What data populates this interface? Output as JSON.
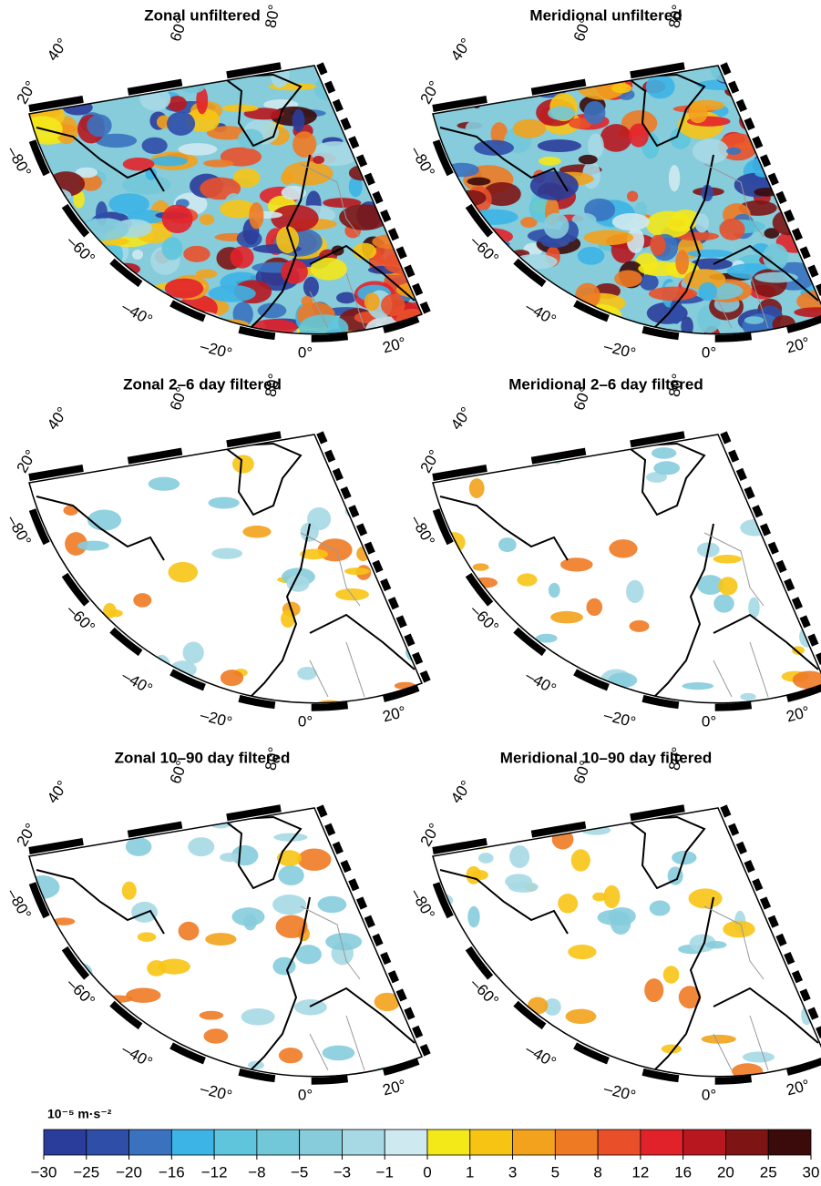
{
  "panels": [
    {
      "title": "Zonal unfiltered",
      "lat_labels": [
        "20°",
        "40°",
        "60°",
        "80°"
      ],
      "lon_labels": [
        "–80°",
        "–60°",
        "–40°",
        "–20°",
        "0°",
        "20°"
      ]
    },
    {
      "title": "Meridional unfiltered",
      "lat_labels": [
        "20°",
        "40°",
        "60°",
        "80°"
      ],
      "lon_labels": [
        "–80°",
        "–60°",
        "–40°",
        "–20°",
        "0°",
        "20°"
      ]
    },
    {
      "title": "Zonal 2–6 day filtered",
      "lat_labels": [
        "20°",
        "40°",
        "60°",
        "80°"
      ],
      "lon_labels": [
        "–80°",
        "–60°",
        "–40°",
        "–20°",
        "0°",
        "20°"
      ]
    },
    {
      "title": "Meridional 2–6 day filtered",
      "lat_labels": [
        "20°",
        "40°",
        "60°",
        "80°"
      ],
      "lon_labels": [
        "–80°",
        "–60°",
        "–40°",
        "–20°",
        "0°",
        "20°"
      ]
    },
    {
      "title": "Zonal 10–90 day filtered",
      "lat_labels": [
        "20°",
        "40°",
        "60°",
        "80°"
      ],
      "lon_labels": [
        "–80°",
        "–60°",
        "–40°",
        "–20°",
        "0°",
        "20°"
      ]
    },
    {
      "title": "Meridional 10–90 day filtered",
      "lat_labels": [
        "20°",
        "40°",
        "60°",
        "80°"
      ],
      "lon_labels": [
        "–80°",
        "–60°",
        "–40°",
        "–20°",
        "0°",
        "20°"
      ]
    }
  ],
  "colorbar": {
    "unit": "10⁻⁵ m·s⁻²",
    "ticks": [
      {
        "value": -30,
        "label": "−30"
      },
      {
        "value": -25,
        "label": "−25"
      },
      {
        "value": -20,
        "label": "−20"
      },
      {
        "value": -16,
        "label": "−16"
      },
      {
        "value": -12,
        "label": "−12"
      },
      {
        "value": -8,
        "label": "−8"
      },
      {
        "value": -5,
        "label": "−5"
      },
      {
        "value": -3,
        "label": "−3"
      },
      {
        "value": -1,
        "label": "−1"
      },
      0,
      1,
      3,
      5,
      8,
      12,
      16,
      20,
      25,
      30
    ],
    "colors": [
      "#2b3d9a",
      "#2f4ea8",
      "#3a72bf",
      "#3db4e6",
      "#5ec5dc",
      "#72c8d8",
      "#86ccdb",
      "#a6d9e4",
      "#cfe9f0",
      "#f3e818",
      "#f8c414",
      "#f2a21c",
      "#ee7a24",
      "#e9502a",
      "#e2222a",
      "#b8171f",
      "#7e1514",
      "#3b0a0a"
    ]
  }
}
